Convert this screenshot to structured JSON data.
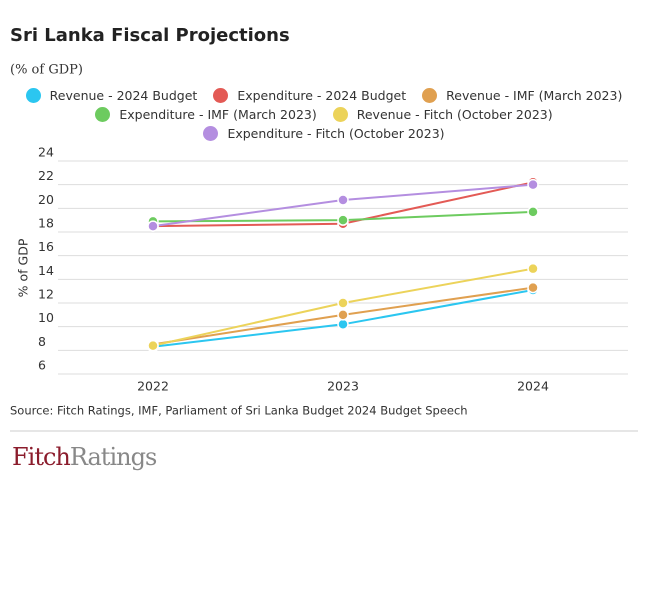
{
  "chart_data": {
    "type": "line",
    "title": "Sri Lanka Fiscal Projections",
    "subtitle": "(% of GDP)",
    "y_label": "% of GDP",
    "categories": [
      "2022",
      "2023",
      "2024"
    ],
    "series": [
      {
        "name": "Revenue - 2024 Budget",
        "color": "#2bc6f0",
        "values": [
          8.3,
          10.2,
          13.1
        ]
      },
      {
        "name": "Expenditure - 2024 Budget",
        "color": "#e35a55",
        "values": [
          18.5,
          18.7,
          22.2
        ]
      },
      {
        "name": "Revenue - IMF (March 2023)",
        "color": "#e0a050",
        "values": [
          8.5,
          11.0,
          13.3
        ]
      },
      {
        "name": "Expenditure - IMF (March 2023)",
        "color": "#6dcb5f",
        "values": [
          18.9,
          19.0,
          19.7
        ]
      },
      {
        "name": "Revenue - Fitch (October 2023)",
        "color": "#ecd35a",
        "values": [
          8.4,
          12.0,
          14.9
        ]
      },
      {
        "name": "Expenditure - Fitch (October 2023)",
        "color": "#b48ee0",
        "values": [
          18.5,
          20.7,
          22.0
        ]
      }
    ],
    "ylim": [
      6,
      24
    ],
    "yticks": [
      6,
      8,
      10,
      12,
      14,
      16,
      18,
      20,
      22,
      24
    ],
    "grid": true,
    "source": "Source: Fitch Ratings, IMF, Parliament of Sri Lanka Budget 2024 Budget Speech"
  },
  "logo": {
    "first": "Fitch",
    "second": "Ratings"
  }
}
